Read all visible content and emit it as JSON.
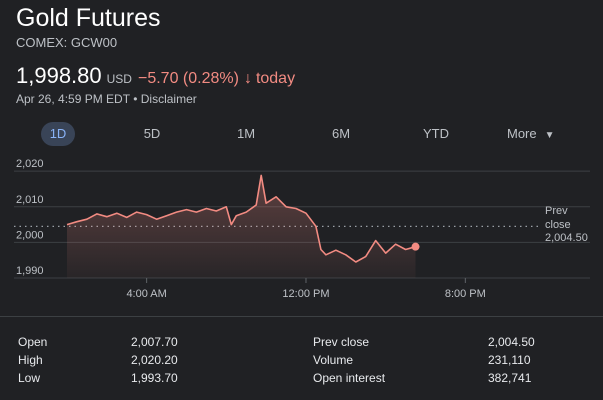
{
  "header": {
    "title": "Gold Futures",
    "ticker": "COMEX: GCW00",
    "price": "1,998.80",
    "currency": "USD",
    "change": "−5.70 (0.28%)",
    "change_arrow": "↓",
    "change_period": "today",
    "timestamp": "Apr 26, 4:59 PM EDT",
    "separator": "•",
    "disclaimer": "Disclaimer"
  },
  "colors": {
    "negative": "#f28b82",
    "background": "#202124",
    "active_tab_bg": "#394457",
    "active_tab_text": "#8ab4f8"
  },
  "ranges": [
    {
      "label": "1D",
      "active": true
    },
    {
      "label": "5D",
      "active": false
    },
    {
      "label": "1M",
      "active": false
    },
    {
      "label": "6M",
      "active": false
    },
    {
      "label": "YTD",
      "active": false
    }
  ],
  "more": {
    "label": "More",
    "icon": "caret-down-icon"
  },
  "chart_data": {
    "type": "area",
    "y_ticks": [
      "2,020",
      "2,010",
      "2,000",
      "1,990"
    ],
    "y_tick_values": [
      2020,
      2010,
      2000,
      1990
    ],
    "ylim": [
      1990,
      2022
    ],
    "x_ticks": [
      "4:00 AM",
      "12:00 PM",
      "8:00 PM"
    ],
    "x_tick_hours": [
      4,
      12,
      20
    ],
    "xlim_hours": [
      -0.5,
      24
    ],
    "prev_close": {
      "label_line1": "Prev",
      "label_line2": "close",
      "value_text": "2,004.50",
      "value": 2004.5
    },
    "series": [
      {
        "x": [
          0,
          0.5,
          1,
          1.5,
          2,
          2.5,
          3,
          3.5,
          4,
          4.5,
          5,
          5.5,
          6,
          6.5,
          7,
          7.5,
          8,
          8.25,
          8.5,
          9,
          9.5,
          9.75,
          10,
          10.5,
          11,
          11.5,
          12,
          12.5,
          12.75,
          13,
          13.5,
          14,
          14.5,
          15,
          15.5,
          16,
          16.5,
          17,
          17.5
        ],
        "y": [
          2005.0,
          2005.8,
          2006.5,
          2008.0,
          2007.2,
          2008.2,
          2007.0,
          2008.5,
          2007.8,
          2006.5,
          2007.5,
          2008.5,
          2009.2,
          2008.5,
          2009.5,
          2008.8,
          2010.0,
          2005.0,
          2007.5,
          2008.5,
          2010.5,
          2018.8,
          2011.0,
          2012.8,
          2010.0,
          2009.5,
          2008.2,
          2004.5,
          1998.0,
          1996.5,
          1997.8,
          1996.5,
          1994.5,
          1996.0,
          2000.5,
          1997.0,
          1999.5,
          1998.0,
          1998.8
        ]
      }
    ]
  },
  "stats": {
    "left": [
      {
        "label": "Open",
        "value": "2,007.70"
      },
      {
        "label": "High",
        "value": "2,020.20"
      },
      {
        "label": "Low",
        "value": "1,993.70"
      }
    ],
    "right": [
      {
        "label": "Prev close",
        "value": "2,004.50"
      },
      {
        "label": "Volume",
        "value": "231,110"
      },
      {
        "label": "Open interest",
        "value": "382,741"
      }
    ]
  }
}
